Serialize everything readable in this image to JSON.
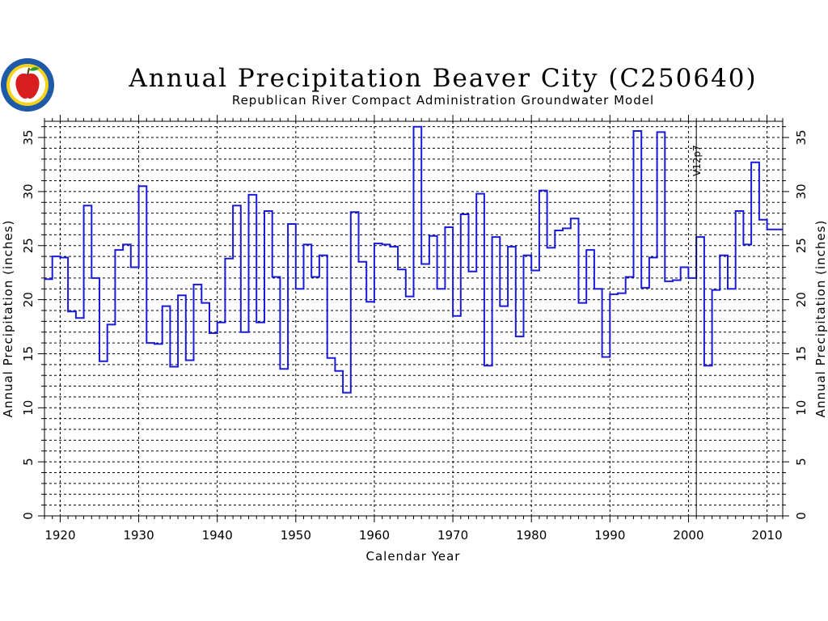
{
  "chart_data": {
    "type": "line",
    "step": true,
    "title": "Annual Precipitation Beaver City (C250640)",
    "subtitle": "Republican River Compact Administration Groundwater Model",
    "xlabel": "Calendar Year",
    "ylabel": "Annual Precipitation (inches)",
    "xlim": [
      1918,
      2012
    ],
    "ylim": [
      0,
      36.5
    ],
    "xticks": [
      1920,
      1930,
      1940,
      1950,
      1960,
      1970,
      1980,
      1990,
      2000,
      2010
    ],
    "yticks": [
      0,
      5,
      10,
      15,
      20,
      25,
      30,
      35
    ],
    "grid": true,
    "series_color": "#1a1adb",
    "annotation": {
      "text": "V12p7",
      "x": 2001
    },
    "series": [
      {
        "x": [
          1918,
          1919,
          1920,
          1921,
          1922,
          1923,
          1924,
          1925,
          1926,
          1927,
          1928,
          1929,
          1930,
          1931,
          1932,
          1933,
          1934,
          1935,
          1936,
          1937,
          1938,
          1939,
          1940,
          1941,
          1942,
          1943,
          1944,
          1945,
          1946,
          1947,
          1948,
          1949,
          1950,
          1951,
          1952,
          1953,
          1954,
          1955,
          1956,
          1957,
          1958,
          1959,
          1960,
          1961,
          1962,
          1963,
          1964,
          1965,
          1966,
          1967,
          1968,
          1969,
          1970,
          1971,
          1972,
          1973,
          1974,
          1975,
          1976,
          1977,
          1978,
          1979,
          1980,
          1981,
          1982,
          1983,
          1984,
          1985,
          1986,
          1987,
          1988,
          1989,
          1990,
          1991,
          1992,
          1993,
          1994,
          1995,
          1996,
          1997,
          1998,
          1999,
          2000,
          2001,
          2002,
          2003,
          2004,
          2005,
          2006,
          2007,
          2008,
          2009,
          2010,
          2011
        ],
        "values": [
          21.9,
          24.0,
          23.9,
          18.9,
          18.3,
          28.7,
          22.0,
          14.3,
          17.7,
          24.6,
          25.1,
          23.0,
          30.5,
          16.0,
          15.9,
          19.4,
          13.8,
          20.4,
          14.4,
          21.4,
          19.7,
          16.9,
          17.9,
          23.8,
          28.7,
          17.0,
          29.7,
          17.9,
          28.2,
          22.1,
          13.6,
          27.0,
          21.0,
          25.1,
          22.1,
          24.1,
          14.6,
          13.4,
          11.4,
          28.1,
          23.5,
          19.8,
          25.2,
          25.1,
          24.9,
          22.8,
          20.3,
          36.0,
          23.3,
          25.9,
          21.0,
          26.7,
          18.5,
          27.9,
          22.6,
          29.8,
          13.9,
          25.8,
          19.4,
          24.9,
          16.6,
          24.1,
          22.7,
          30.1,
          24.8,
          26.4,
          26.6,
          27.5,
          19.7,
          24.6,
          21.0,
          14.7,
          20.5,
          20.6,
          22.1,
          35.6,
          21.1,
          23.9,
          35.5,
          21.7,
          21.8,
          23.0,
          22.0,
          25.8,
          13.9,
          20.9,
          24.1,
          21.0,
          28.2,
          25.1,
          32.7,
          27.4,
          26.5,
          26.5
        ]
      }
    ]
  }
}
